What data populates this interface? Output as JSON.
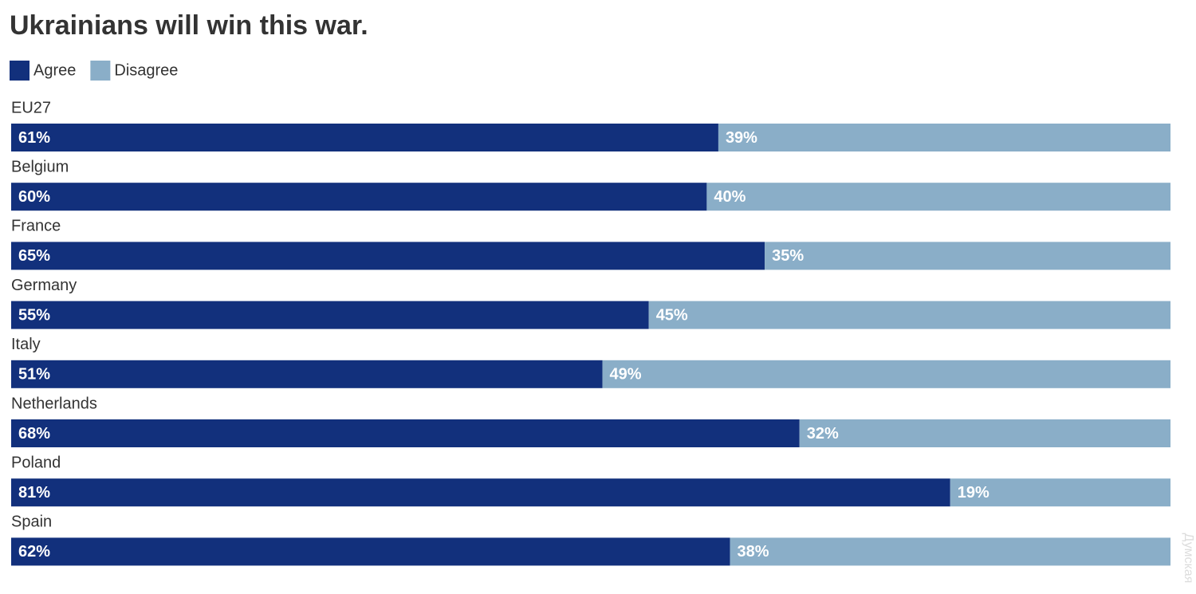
{
  "chart_data": {
    "type": "stacked-bar-horizontal",
    "title": "Ukrainians will win this war.",
    "categories": [
      "EU27",
      "Belgium",
      "France",
      "Germany",
      "Italy",
      "Netherlands",
      "Poland",
      "Spain"
    ],
    "series": [
      {
        "name": "Agree",
        "color": "#12307c",
        "values": [
          61,
          60,
          65,
          55,
          51,
          68,
          81,
          62
        ],
        "value_labels": [
          "61%",
          "60%",
          "65%",
          "55%",
          "51%",
          "68%",
          "81%",
          "62%"
        ]
      },
      {
        "name": "Disagree",
        "color": "#8aaec8",
        "values": [
          39,
          40,
          35,
          45,
          49,
          32,
          19,
          38
        ],
        "value_labels": [
          "39%",
          "40%",
          "35%",
          "45%",
          "49%",
          "32%",
          "19%",
          "38%"
        ]
      }
    ],
    "watermark": "Думская"
  }
}
